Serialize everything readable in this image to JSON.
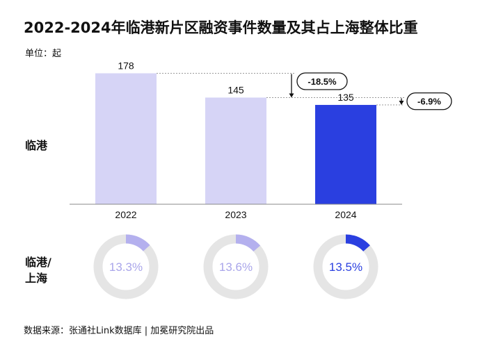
{
  "title": "2022-2024年临港新片区融资事件数量及其占上海整体比重",
  "unit": "单位：起",
  "row_labels": {
    "bar": "临港",
    "donut": "临港/\n上海"
  },
  "source": "数据来源：张通社Link数据库 | 加冕研究院出品",
  "colors": {
    "light": "#d6d4f6",
    "dark": "#2a3fe0",
    "track": "#e5e5e5",
    "axis": "#888888"
  },
  "chart_data": {
    "type": "bar",
    "categories": [
      "2022",
      "2023",
      "2024"
    ],
    "values": [
      178,
      145,
      135
    ],
    "ylim": [
      0,
      200
    ],
    "highlight_index": 2,
    "changes": [
      {
        "from": "2022",
        "to": "2023",
        "label": "-18.5%"
      },
      {
        "from": "2023",
        "to": "2024",
        "label": "-6.9%"
      }
    ],
    "shares": {
      "type": "pie",
      "values": [
        13.3,
        13.6,
        13.5
      ],
      "labels": [
        "13.3%",
        "13.6%",
        "13.5%"
      ],
      "scale_max": 100
    }
  }
}
